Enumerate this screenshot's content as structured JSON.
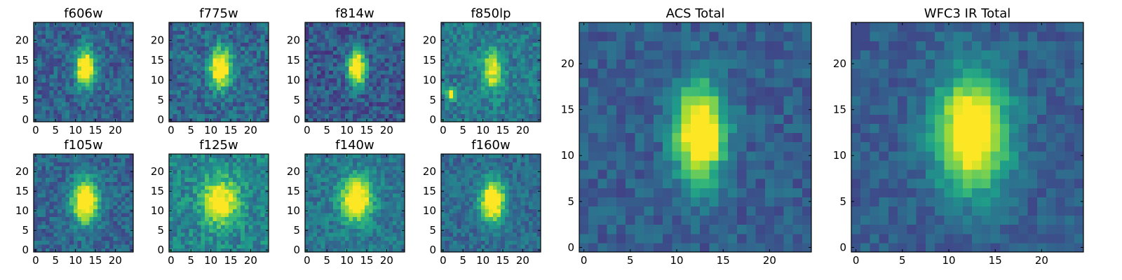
{
  "chart_data": {
    "type": "heatmap",
    "colormap": "viridis",
    "grid_size": 25,
    "panels": [
      {
        "title": "f606w",
        "xticks": [
          0,
          5,
          10,
          15,
          20
        ],
        "yticks": [
          0,
          5,
          10,
          15,
          20
        ],
        "source": {
          "cx": 12.5,
          "cy": 13,
          "sx": 1.6,
          "sy": 3.2,
          "amp": 1.0
        },
        "background": 0.32,
        "noise": 0.14,
        "seed": 11
      },
      {
        "title": "f775w",
        "xticks": [
          0,
          5,
          10,
          15,
          20
        ],
        "yticks": [
          0,
          5,
          10,
          15,
          20
        ],
        "source": {
          "cx": 12.5,
          "cy": 13,
          "sx": 1.8,
          "sy": 3.3,
          "amp": 0.95
        },
        "background": 0.34,
        "noise": 0.15,
        "seed": 23
      },
      {
        "title": "f814w",
        "xticks": [
          0,
          5,
          10,
          15,
          20
        ],
        "yticks": [
          0,
          5,
          10,
          15,
          20
        ],
        "source": {
          "cx": 12.5,
          "cy": 13,
          "sx": 1.5,
          "sy": 3.0,
          "amp": 1.0
        },
        "background": 0.28,
        "noise": 0.15,
        "seed": 37
      },
      {
        "title": "f850lp",
        "xticks": [
          0,
          5,
          10,
          15,
          20
        ],
        "yticks": [
          0,
          5,
          10,
          15,
          20
        ],
        "source": {
          "cx": 12.5,
          "cy": 12.5,
          "sx": 1.8,
          "sy": 3.5,
          "amp": 0.6,
          "extra": {
            "cx": 2,
            "cy": 6.5,
            "sx": 1.0,
            "sy": 0.9,
            "amp": 0.7
          }
        },
        "background": 0.4,
        "noise": 0.14,
        "seed": 41
      },
      {
        "title": "f105w",
        "xticks": [
          0,
          5,
          10,
          15,
          20
        ],
        "yticks": [
          0,
          5,
          10,
          15,
          20
        ],
        "source": {
          "cx": 12.5,
          "cy": 12.5,
          "sx": 2.2,
          "sy": 3.8,
          "amp": 0.95
        },
        "background": 0.33,
        "noise": 0.13,
        "seed": 53
      },
      {
        "title": "f125w",
        "xticks": [
          0,
          5,
          10,
          15,
          20
        ],
        "yticks": [
          0,
          5,
          10,
          15,
          20
        ],
        "source": {
          "cx": 12.5,
          "cy": 12.5,
          "sx": 3.0,
          "sy": 4.0,
          "amp": 0.7
        },
        "background": 0.45,
        "noise": 0.15,
        "seed": 67
      },
      {
        "title": "f140w",
        "xticks": [
          0,
          5,
          10,
          15,
          20
        ],
        "yticks": [
          0,
          5,
          10,
          15,
          20
        ],
        "source": {
          "cx": 12.5,
          "cy": 13,
          "sx": 2.6,
          "sy": 3.8,
          "amp": 0.8
        },
        "background": 0.4,
        "noise": 0.13,
        "seed": 71
      },
      {
        "title": "f160w",
        "xticks": [
          0,
          5,
          10,
          15,
          20
        ],
        "yticks": [
          0,
          5,
          10,
          15,
          20
        ],
        "source": {
          "cx": 12.5,
          "cy": 12.5,
          "sx": 2.1,
          "sy": 3.6,
          "amp": 0.9
        },
        "background": 0.35,
        "noise": 0.12,
        "seed": 83
      },
      {
        "title": "ACS Total",
        "xticks": [
          0,
          5,
          10,
          15,
          20
        ],
        "yticks": [
          0,
          5,
          10,
          15,
          20
        ],
        "source": {
          "cx": 12.5,
          "cy": 12.5,
          "sx": 1.8,
          "sy": 3.6,
          "amp": 1.0
        },
        "background": 0.3,
        "noise": 0.1,
        "seed": 97
      },
      {
        "title": "WFC3 IR Total",
        "xticks": [
          0,
          5,
          10,
          15,
          20
        ],
        "yticks": [
          0,
          5,
          10,
          15,
          20
        ],
        "source": {
          "cx": 12.5,
          "cy": 12.5,
          "sx": 2.6,
          "sy": 4.2,
          "amp": 0.95
        },
        "background": 0.3,
        "noise": 0.09,
        "seed": 103
      }
    ]
  }
}
